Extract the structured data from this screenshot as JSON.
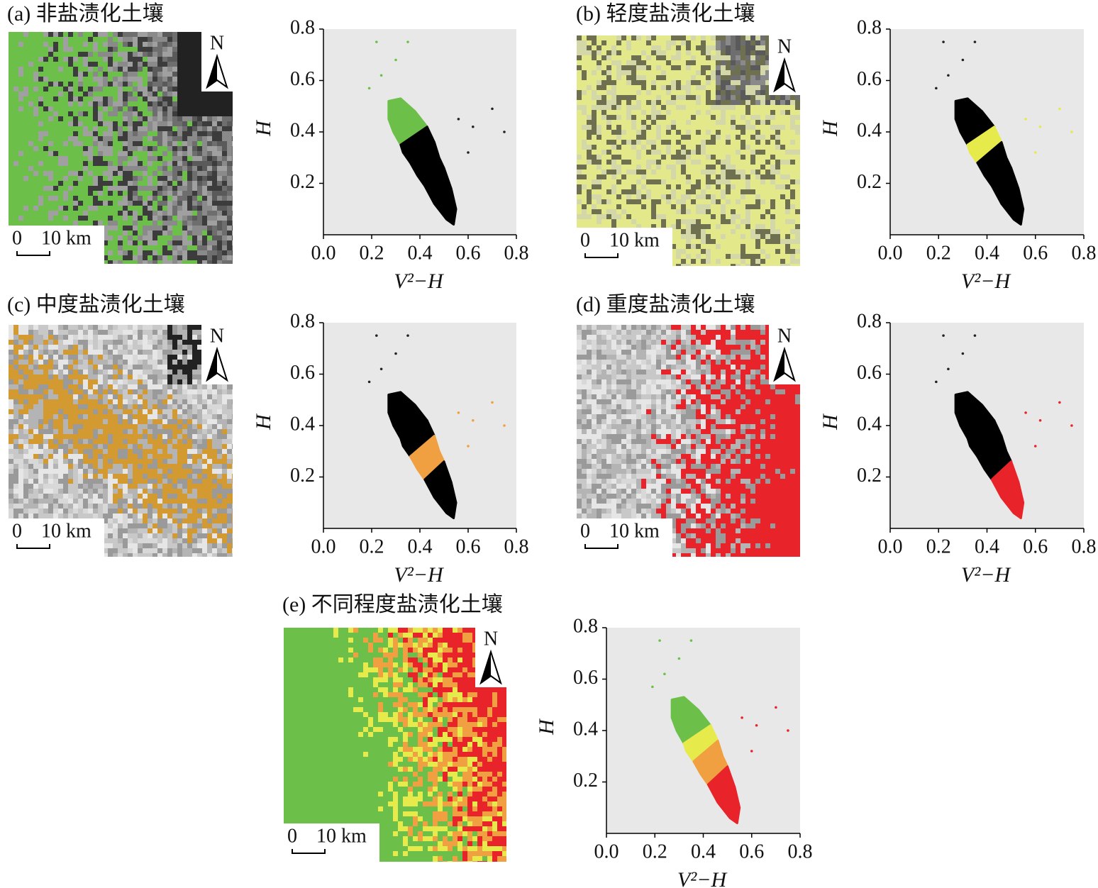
{
  "panels": [
    {
      "title": "(a) 非盐渍化土壤",
      "north": "N",
      "scale_zero": "0",
      "scale_label": "10 km"
    },
    {
      "title": "(b) 轻度盐渍化土壤",
      "north": "N",
      "scale_zero": "0",
      "scale_label": "10 km"
    },
    {
      "title": "(c) 中度盐渍化土壤",
      "north": "N",
      "scale_zero": "0",
      "scale_label": "10 km"
    },
    {
      "title": "(d) 重度盐渍化土壤",
      "north": "N",
      "scale_zero": "0",
      "scale_label": "10 km"
    },
    {
      "title": "(e) 不同程度盐渍化土壤",
      "north": "N",
      "scale_zero": "0",
      "scale_label": "10 km"
    }
  ],
  "chart_data": [
    {
      "type": "scatter",
      "x_label": "V²−H",
      "y_label": "H",
      "xlim": [
        0,
        0.8
      ],
      "ylim": [
        0,
        0.8
      ],
      "xticks": [
        {
          "value": 0,
          "label": "0.0"
        },
        0.2,
        0.4,
        0.6,
        0.8
      ],
      "yticks": [
        0.2,
        0.4,
        0.6,
        0.8
      ],
      "background": "#e8e8e8",
      "series": [
        {
          "mode": "region",
          "color": "#6cc04a",
          "x": [
            0.27,
            0.32,
            0.38,
            0.43,
            0.32,
            0.29,
            0.27
          ],
          "values": [
            0.52,
            0.53,
            0.48,
            0.42,
            0.35,
            0.4,
            0.45
          ]
        },
        {
          "mode": "region",
          "color": "#000000",
          "x": [
            0.32,
            0.43,
            0.46,
            0.36,
            0.33
          ],
          "values": [
            0.35,
            0.42,
            0.36,
            0.28,
            0.32
          ]
        },
        {
          "mode": "region",
          "color": "#000000",
          "x": [
            0.36,
            0.46,
            0.48,
            0.5,
            0.42,
            0.39
          ],
          "values": [
            0.28,
            0.36,
            0.3,
            0.26,
            0.19,
            0.23
          ]
        },
        {
          "mode": "region",
          "color": "#000000",
          "x": [
            0.42,
            0.5,
            0.53,
            0.55,
            0.54,
            0.51,
            0.46
          ],
          "values": [
            0.19,
            0.26,
            0.18,
            0.1,
            0.04,
            0.06,
            0.12
          ]
        },
        {
          "mode": "points",
          "color": "#6cc04a",
          "x": [
            0.19,
            0.22,
            0.3,
            0.35,
            0.24
          ],
          "values": [
            0.57,
            0.75,
            0.68,
            0.75,
            0.62
          ]
        },
        {
          "mode": "points",
          "color": "#222222",
          "x": [
            0.56,
            0.62,
            0.7,
            0.75,
            0.6
          ],
          "values": [
            0.45,
            0.42,
            0.49,
            0.4,
            0.32
          ]
        }
      ]
    },
    {
      "type": "scatter",
      "x_label": "V²−H",
      "y_label": "H",
      "xlim": [
        0,
        0.8
      ],
      "ylim": [
        0,
        0.8
      ],
      "xticks": [
        {
          "value": 0,
          "label": "0.0"
        },
        0.2,
        0.4,
        0.6,
        0.8
      ],
      "yticks": [
        0.2,
        0.4,
        0.6,
        0.8
      ],
      "background": "#e8e8e8",
      "series": [
        {
          "mode": "region",
          "color": "#000000",
          "x": [
            0.27,
            0.32,
            0.38,
            0.43,
            0.32,
            0.29,
            0.27
          ],
          "values": [
            0.52,
            0.53,
            0.48,
            0.42,
            0.35,
            0.4,
            0.45
          ]
        },
        {
          "mode": "region",
          "color": "#e6ea4a",
          "x": [
            0.32,
            0.43,
            0.46,
            0.36,
            0.33
          ],
          "values": [
            0.35,
            0.42,
            0.36,
            0.28,
            0.32
          ]
        },
        {
          "mode": "region",
          "color": "#000000",
          "x": [
            0.36,
            0.46,
            0.48,
            0.5,
            0.42,
            0.39
          ],
          "values": [
            0.28,
            0.36,
            0.3,
            0.26,
            0.19,
            0.23
          ]
        },
        {
          "mode": "region",
          "color": "#000000",
          "x": [
            0.42,
            0.5,
            0.53,
            0.55,
            0.54,
            0.51,
            0.46
          ],
          "values": [
            0.19,
            0.26,
            0.18,
            0.1,
            0.04,
            0.06,
            0.12
          ]
        },
        {
          "mode": "points",
          "color": "#222222",
          "x": [
            0.19,
            0.22,
            0.3,
            0.35,
            0.24
          ],
          "values": [
            0.57,
            0.75,
            0.68,
            0.75,
            0.62
          ]
        },
        {
          "mode": "points",
          "color": "#e6ea4a",
          "x": [
            0.56,
            0.62,
            0.7,
            0.75,
            0.6
          ],
          "values": [
            0.45,
            0.42,
            0.49,
            0.4,
            0.32
          ]
        }
      ]
    },
    {
      "type": "scatter",
      "x_label": "V²−H",
      "y_label": "H",
      "xlim": [
        0,
        0.8
      ],
      "ylim": [
        0,
        0.8
      ],
      "xticks": [
        {
          "value": 0,
          "label": "0.0"
        },
        0.2,
        0.4,
        0.6,
        0.8
      ],
      "yticks": [
        0.2,
        0.4,
        0.6,
        0.8
      ],
      "background": "#e8e8e8",
      "series": [
        {
          "mode": "region",
          "color": "#000000",
          "x": [
            0.27,
            0.32,
            0.38,
            0.43,
            0.32,
            0.29,
            0.27
          ],
          "values": [
            0.52,
            0.53,
            0.48,
            0.42,
            0.35,
            0.4,
            0.45
          ]
        },
        {
          "mode": "region",
          "color": "#000000",
          "x": [
            0.32,
            0.43,
            0.46,
            0.36,
            0.33
          ],
          "values": [
            0.35,
            0.42,
            0.36,
            0.28,
            0.32
          ]
        },
        {
          "mode": "region",
          "color": "#f0a040",
          "x": [
            0.36,
            0.46,
            0.48,
            0.5,
            0.42,
            0.39
          ],
          "values": [
            0.28,
            0.36,
            0.3,
            0.26,
            0.19,
            0.23
          ]
        },
        {
          "mode": "region",
          "color": "#000000",
          "x": [
            0.42,
            0.5,
            0.53,
            0.55,
            0.54,
            0.51,
            0.46
          ],
          "values": [
            0.19,
            0.26,
            0.18,
            0.1,
            0.04,
            0.06,
            0.12
          ]
        },
        {
          "mode": "points",
          "color": "#222222",
          "x": [
            0.19,
            0.22,
            0.3,
            0.35,
            0.24
          ],
          "values": [
            0.57,
            0.75,
            0.68,
            0.75,
            0.62
          ]
        },
        {
          "mode": "points",
          "color": "#f0a040",
          "x": [
            0.56,
            0.62,
            0.7,
            0.75,
            0.6
          ],
          "values": [
            0.45,
            0.42,
            0.49,
            0.4,
            0.32
          ]
        }
      ]
    },
    {
      "type": "scatter",
      "x_label": "V²−H",
      "y_label": "H",
      "xlim": [
        0,
        0.8
      ],
      "ylim": [
        0,
        0.8
      ],
      "xticks": [
        {
          "value": 0,
          "label": "0.0"
        },
        0.2,
        0.4,
        0.6,
        0.8
      ],
      "yticks": [
        0.2,
        0.4,
        0.6,
        0.8
      ],
      "background": "#e8e8e8",
      "series": [
        {
          "mode": "region",
          "color": "#000000",
          "x": [
            0.27,
            0.32,
            0.38,
            0.43,
            0.32,
            0.29,
            0.27
          ],
          "values": [
            0.52,
            0.53,
            0.48,
            0.42,
            0.35,
            0.4,
            0.45
          ]
        },
        {
          "mode": "region",
          "color": "#000000",
          "x": [
            0.32,
            0.43,
            0.46,
            0.36,
            0.33
          ],
          "values": [
            0.35,
            0.42,
            0.36,
            0.28,
            0.32
          ]
        },
        {
          "mode": "region",
          "color": "#000000",
          "x": [
            0.36,
            0.46,
            0.48,
            0.5,
            0.42,
            0.39
          ],
          "values": [
            0.28,
            0.36,
            0.3,
            0.26,
            0.19,
            0.23
          ]
        },
        {
          "mode": "region",
          "color": "#e8232a",
          "x": [
            0.42,
            0.5,
            0.53,
            0.55,
            0.54,
            0.51,
            0.46
          ],
          "values": [
            0.19,
            0.26,
            0.18,
            0.1,
            0.04,
            0.06,
            0.12
          ]
        },
        {
          "mode": "points",
          "color": "#222222",
          "x": [
            0.19,
            0.22,
            0.3,
            0.35,
            0.24
          ],
          "values": [
            0.57,
            0.75,
            0.68,
            0.75,
            0.62
          ]
        },
        {
          "mode": "points",
          "color": "#e8232a",
          "x": [
            0.56,
            0.62,
            0.7,
            0.75,
            0.6
          ],
          "values": [
            0.45,
            0.42,
            0.49,
            0.4,
            0.32
          ]
        }
      ]
    },
    {
      "type": "scatter",
      "x_label": "V²−H",
      "y_label": "H",
      "xlim": [
        0,
        0.8
      ],
      "ylim": [
        0,
        0.8
      ],
      "xticks": [
        {
          "value": 0,
          "label": "0.0"
        },
        0.2,
        0.4,
        0.6,
        0.8
      ],
      "yticks": [
        0.2,
        0.4,
        0.6,
        0.8
      ],
      "background": "#e8e8e8",
      "series": [
        {
          "mode": "region",
          "color": "#6cc04a",
          "x": [
            0.27,
            0.32,
            0.38,
            0.43,
            0.32,
            0.29,
            0.27
          ],
          "values": [
            0.52,
            0.53,
            0.48,
            0.42,
            0.35,
            0.4,
            0.45
          ]
        },
        {
          "mode": "region",
          "color": "#e6ea4a",
          "x": [
            0.32,
            0.43,
            0.46,
            0.36,
            0.33
          ],
          "values": [
            0.35,
            0.42,
            0.36,
            0.28,
            0.32
          ]
        },
        {
          "mode": "region",
          "color": "#f0a040",
          "x": [
            0.36,
            0.46,
            0.48,
            0.5,
            0.42,
            0.39
          ],
          "values": [
            0.28,
            0.36,
            0.3,
            0.26,
            0.19,
            0.23
          ]
        },
        {
          "mode": "region",
          "color": "#e8232a",
          "x": [
            0.42,
            0.5,
            0.53,
            0.55,
            0.54,
            0.51,
            0.46
          ],
          "values": [
            0.19,
            0.26,
            0.18,
            0.1,
            0.04,
            0.06,
            0.12
          ]
        },
        {
          "mode": "points",
          "color": "#6cc04a",
          "x": [
            0.19,
            0.22,
            0.3,
            0.35,
            0.24
          ],
          "values": [
            0.57,
            0.75,
            0.68,
            0.75,
            0.62
          ]
        },
        {
          "mode": "points",
          "color": "#e8232a",
          "x": [
            0.56,
            0.62,
            0.7,
            0.75,
            0.6
          ],
          "values": [
            0.45,
            0.42,
            0.49,
            0.4,
            0.32
          ]
        }
      ]
    }
  ]
}
